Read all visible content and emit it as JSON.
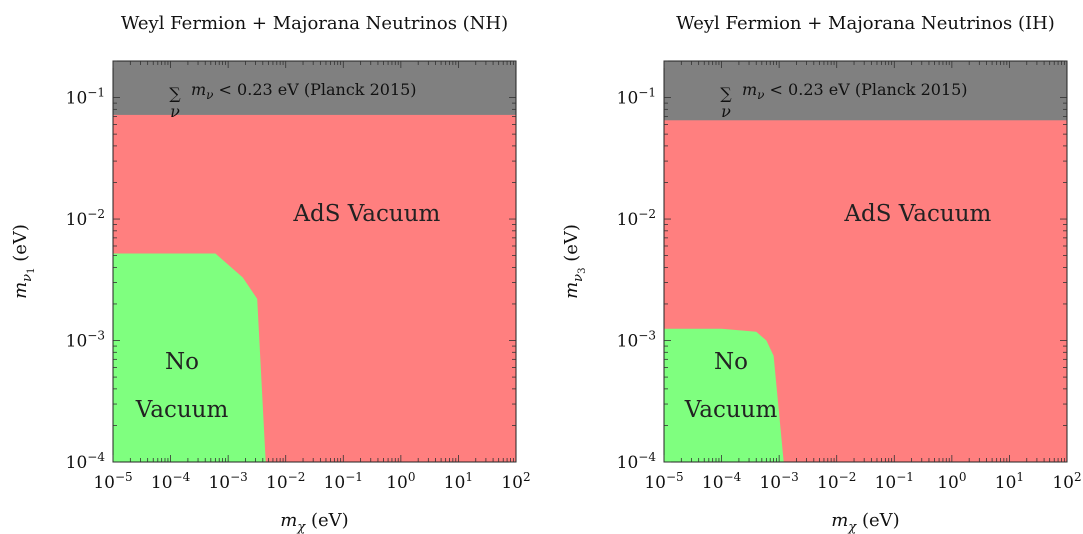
{
  "chart_data": [
    {
      "type": "area",
      "title": "Weyl Fermion + Majorana Neutrinos (NH)",
      "xlabel": "m_χ (eV)",
      "ylabel": "m_ν1 (eV)",
      "xlim": [
        1e-05,
        100
      ],
      "ylim": [
        0.0001,
        0.2
      ],
      "xscale": "log",
      "yscale": "log",
      "x_ticks": [
        "10^-5",
        "10^-4",
        "10^-3",
        "10^-2",
        "10^-1",
        "10^0",
        "10^1",
        "10^2"
      ],
      "y_ticks": [
        "10^-4",
        "10^-3",
        "10^-2",
        "10^-1"
      ],
      "grid": false,
      "regions": [
        {
          "name": "AdS Vacuum",
          "color": "#ff7f7f",
          "label": "AdS Vacuum"
        },
        {
          "name": "No Vacuum",
          "color": "#7fff7f",
          "label_lines": [
            "No",
            "Vacuum"
          ],
          "boundary": [
            [
              1e-05,
              0.0052
            ],
            [
              0.0006,
              0.0052
            ],
            [
              0.0018,
              0.0033
            ],
            [
              0.0032,
              0.0022
            ],
            [
              0.0045,
              0.0001
            ]
          ]
        },
        {
          "name": "Planck 2015 excluded",
          "color": "#808080",
          "lower_bound_y": 0.072,
          "annotation": "m_ν < 0.23 eV (Planck 2015)"
        }
      ]
    },
    {
      "type": "area",
      "title": "Weyl Fermion + Majorana Neutrinos (IH)",
      "xlabel": "m_χ (eV)",
      "ylabel": "m_ν3 (eV)",
      "xlim": [
        1e-05,
        100
      ],
      "ylim": [
        0.0001,
        0.2
      ],
      "xscale": "log",
      "yscale": "log",
      "x_ticks": [
        "10^-5",
        "10^-4",
        "10^-3",
        "10^-2",
        "10^-1",
        "10^0",
        "10^1",
        "10^2"
      ],
      "y_ticks": [
        "10^-4",
        "10^-3",
        "10^-2",
        "10^-1"
      ],
      "grid": false,
      "regions": [
        {
          "name": "AdS Vacuum",
          "color": "#ff7f7f",
          "label": "AdS Vacuum"
        },
        {
          "name": "No Vacuum",
          "color": "#7fff7f",
          "label_lines": [
            "No",
            "Vacuum"
          ],
          "boundary": [
            [
              1e-05,
              0.00125
            ],
            [
              0.0001,
              0.00125
            ],
            [
              0.0004,
              0.00118
            ],
            [
              0.0006,
              0.001
            ],
            [
              0.0008,
              0.00075
            ],
            [
              0.0012,
              0.0001
            ]
          ]
        },
        {
          "name": "Planck 2015 excluded",
          "color": "#808080",
          "lower_bound_y": 0.065,
          "annotation": "m_ν < 0.23 eV (Planck 2015)"
        }
      ]
    }
  ]
}
